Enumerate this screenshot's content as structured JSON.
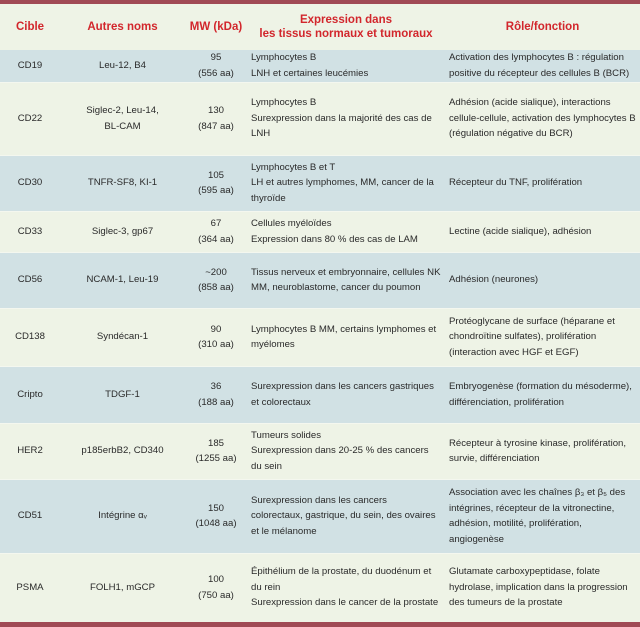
{
  "colors": {
    "accent_bar": "#a04a55",
    "header_text": "#d2262c",
    "row_shaded": "#d1e1e4",
    "row_plain": "#eef3e6"
  },
  "headers": {
    "cible": "Cible",
    "autres_noms": "Autres noms",
    "mw": "MW (kDa)",
    "expression_line1": "Expression dans",
    "expression_line2": "les tissus normaux et tumoraux",
    "role": "Rôle/fonction"
  },
  "rows": [
    {
      "cible": "CD19",
      "autres": [
        "Leu-12, B4"
      ],
      "mw": "95",
      "aa": "(556 aa)",
      "expression": [
        "Lymphocytes B",
        "LNH et certaines leucémies"
      ],
      "role": [
        "Activation des lymphocytes B : régulation positive du récepteur des cellules B (BCR)"
      ]
    },
    {
      "cible": "CD22",
      "autres": [
        "Siglec-2, Leu-14,",
        "BL-CAM"
      ],
      "mw": "130",
      "aa": "(847 aa)",
      "expression": [
        "Lymphocytes B",
        "Surexpression dans la majorité des cas de LNH"
      ],
      "role": [
        "Adhésion (acide sialique), interactions cellule-cellule, activation des lymphocytes B (régulation négative du BCR)"
      ]
    },
    {
      "cible": "CD30",
      "autres": [
        "TNFR-SF8, KI-1"
      ],
      "mw": "105",
      "aa": "(595 aa)",
      "expression": [
        "Lymphocytes B et T",
        "LH et autres lymphomes, MM, cancer de la thyroïde"
      ],
      "role": [
        "Récepteur du TNF, prolifération"
      ]
    },
    {
      "cible": "CD33",
      "autres": [
        "Siglec-3, gp67"
      ],
      "mw": "67",
      "aa": "(364 aa)",
      "expression": [
        "Cellules myéloïdes",
        "Expression dans 80 % des cas de LAM"
      ],
      "role": [
        "Lectine (acide sialique), adhésion"
      ]
    },
    {
      "cible": "CD56",
      "autres": [
        "NCAM-1, Leu-19"
      ],
      "mw": "~200",
      "aa": "(858 aa)",
      "expression": [
        "Tissus nerveux et embryonnaire, cellules NK",
        "MM, neuroblastome, cancer du poumon"
      ],
      "role": [
        "Adhésion (neurones)"
      ]
    },
    {
      "cible": "CD138",
      "autres": [
        "Syndécan-1"
      ],
      "mw": "90",
      "aa": "(310 aa)",
      "expression": [
        "Lymphocytes B MM, certains lymphomes et myélomes"
      ],
      "role": [
        "Protéoglycane de surface (héparane et chondroïtine sulfates), prolifération (interaction avec HGF et EGF)"
      ]
    },
    {
      "cible": "Cripto",
      "autres": [
        "TDGF-1"
      ],
      "mw": "36",
      "aa": "(188 aa)",
      "expression": [
        "Surexpression dans les cancers gastriques et colorectaux"
      ],
      "role": [
        "Embryogenèse (formation du mésoderme), différenciation, prolifération"
      ]
    },
    {
      "cible": "HER2",
      "autres": [
        "p185erbB2, CD340"
      ],
      "mw": "185",
      "aa": "(1255 aa)",
      "expression": [
        "Tumeurs solides",
        "Surexpression dans 20-25 % des cancers du sein"
      ],
      "role": [
        "Récepteur à tyrosine kinase, prolifération, survie, différenciation"
      ]
    },
    {
      "cible": "CD51",
      "autres": [
        "Intégrine αᵥ"
      ],
      "mw": "150",
      "aa": "(1048 aa)",
      "expression": [
        "Surexpression dans les cancers colorectaux, gastrique, du sein, des ovaires et le mélanome"
      ],
      "role": [
        "Association avec les chaînes β₃ et β₅ des intégrines, récepteur de la vitronectine, adhésion, motilité, prolifération, angiogenèse"
      ]
    },
    {
      "cible": "PSMA",
      "autres": [
        "FOLH1, mGCP"
      ],
      "mw": "100",
      "aa": "(750 aa)",
      "expression": [
        "Épithélium de la prostate, du duodénum et du rein",
        "Surexpression dans le cancer de la prostate"
      ],
      "role": [
        "Glutamate carboxypeptidase, folate hydrolase, implication dans la progression des tumeurs de la prostate"
      ]
    }
  ]
}
